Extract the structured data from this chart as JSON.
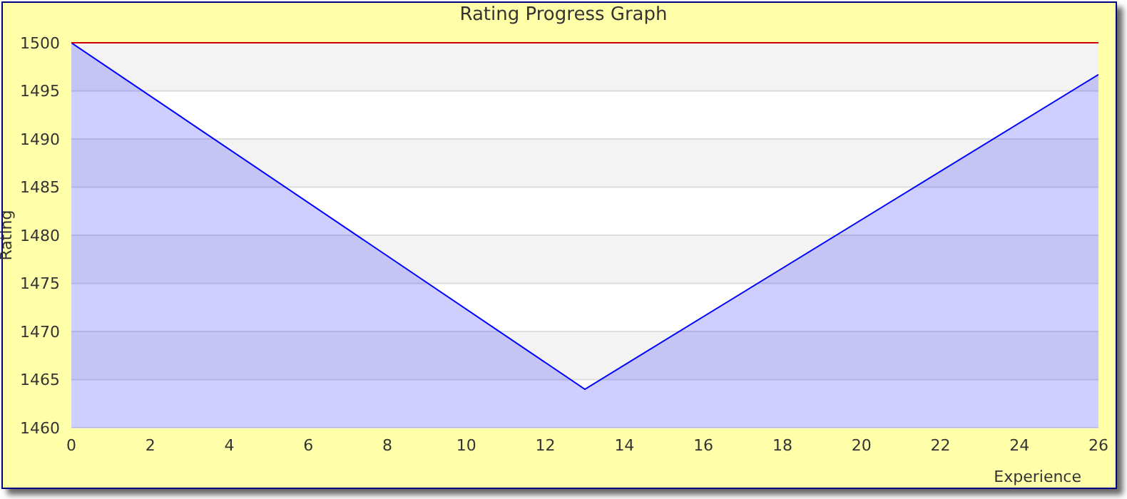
{
  "chart_data": {
    "type": "area",
    "title": "Rating Progress Graph",
    "xlabel": "Experience",
    "ylabel": "Rating",
    "x": [
      0,
      13,
      26
    ],
    "series": [
      {
        "color": "#0000ff",
        "values": [
          1500,
          1464,
          1496.7
        ]
      }
    ],
    "xlim": [
      0,
      26
    ],
    "xticks": [
      0,
      2,
      4,
      6,
      8,
      10,
      12,
      14,
      16,
      18,
      20,
      22,
      24,
      26
    ],
    "ylim": [
      1460,
      1500
    ],
    "yticks": [
      1460,
      1465,
      1470,
      1475,
      1480,
      1485,
      1490,
      1495,
      1500
    ],
    "grid": "y",
    "legend": false,
    "ref_lines": [
      {
        "axis": "y",
        "value": 1500,
        "color": "#cc0000"
      }
    ]
  }
}
